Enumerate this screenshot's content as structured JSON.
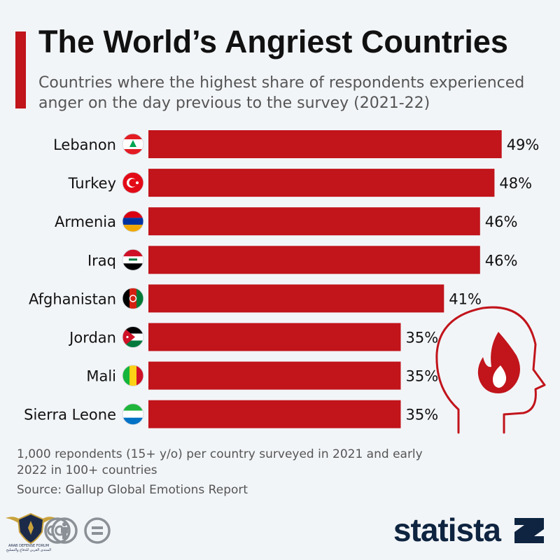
{
  "chart_data": {
    "type": "bar",
    "orientation": "horizontal",
    "title": "The World’s Angriest Countries",
    "subtitle": "Countries where the highest share of respondents experienced anger on the day previous to the survey (2021-22)",
    "categories": [
      "Lebanon",
      "Turkey",
      "Armenia",
      "Iraq",
      "Afghanistan",
      "Jordan",
      "Mali",
      "Sierra Leone"
    ],
    "values": [
      49,
      48,
      46,
      46,
      41,
      35,
      35,
      35
    ],
    "data_labels": [
      "49%",
      "48%",
      "46%",
      "46%",
      "41%",
      "35%",
      "35%",
      "35%"
    ],
    "unit": "%",
    "xlim": [
      0,
      50
    ],
    "grid": false,
    "legend": "none",
    "bar_color": "#c1141b"
  },
  "flags": [
    "lebanon-flag-icon",
    "turkey-flag-icon",
    "armenia-flag-icon",
    "iraq-flag-icon",
    "afghanistan-flag-icon",
    "jordan-flag-icon",
    "mali-flag-icon",
    "sierra-leone-flag-icon"
  ],
  "notes": {
    "footnote": "1,000 repondents (15+ y/o) per country surveyed in 2021 and early 2022 in 100+ countries",
    "source": "Source: Gallup Global Emotions Report"
  },
  "branding": {
    "statista": "statista",
    "watermark": "ARAB DEFENSE FORUM المنتدى العربي للدفاع والتسليح"
  },
  "colors": {
    "accent": "#c1141b",
    "background": "#f2f5f8",
    "statista_navy": "#0e2440"
  }
}
